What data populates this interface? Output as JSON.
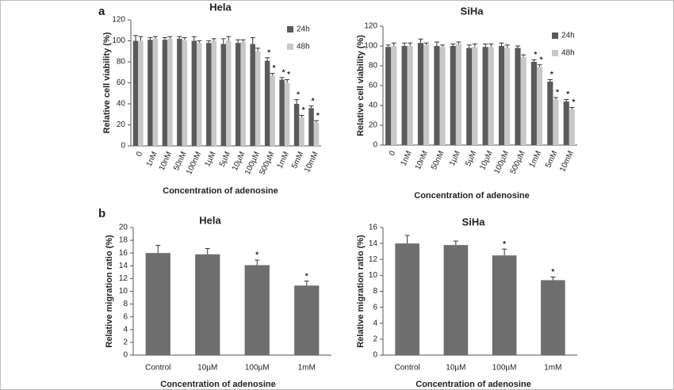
{
  "panel_labels": [
    "a",
    "b"
  ],
  "chart_data": [
    {
      "type": "bar",
      "title": "Hela",
      "ylabel": "Relative cell viability (%)",
      "xlabel": "Concentration of adenosine",
      "categories": [
        "0",
        "1nM",
        "10nM",
        "50nM",
        "100nM",
        "1µM",
        "5µM",
        "10µM",
        "100µM",
        "500µM",
        "1mM",
        "5mM",
        "10mM"
      ],
      "series": [
        {
          "name": "24h",
          "color": "#5a5a5a",
          "values": [
            100,
            101,
            101,
            102,
            100,
            98,
            97,
            98,
            97,
            81,
            63,
            40,
            36
          ],
          "errors": [
            5,
            2,
            2,
            2,
            4,
            2,
            5,
            3,
            6,
            3,
            2,
            4,
            2
          ],
          "annotations": [
            null,
            null,
            null,
            null,
            null,
            null,
            null,
            null,
            null,
            "*",
            "*",
            "*",
            "*"
          ]
        },
        {
          "name": "48h",
          "color": "#c8c8c8",
          "values": [
            100,
            102,
            102,
            101,
            98,
            100,
            100,
            99,
            90,
            67,
            60,
            27,
            22
          ],
          "errors": [
            4,
            2,
            2,
            2,
            2,
            2,
            4,
            2,
            3,
            2,
            3,
            2,
            2
          ],
          "annotations": [
            null,
            null,
            null,
            null,
            null,
            null,
            null,
            null,
            null,
            "*",
            "*",
            "*",
            "*"
          ]
        }
      ],
      "ylim": [
        0,
        120
      ],
      "yticks": [
        0,
        20,
        40,
        60,
        80,
        100,
        120
      ],
      "legend": "top-right"
    },
    {
      "type": "bar",
      "title": "SiHa",
      "ylabel": "Relative cell viability (%)",
      "xlabel": "Concentration of adenosine",
      "categories": [
        "0",
        "1nM",
        "10nM",
        "50nM",
        "1µM",
        "5µM",
        "10µM",
        "100µM",
        "500µM",
        "1mM",
        "5mM",
        "10mM"
      ],
      "series": [
        {
          "name": "24h",
          "color": "#5a5a5a",
          "values": [
            99,
            100,
            103,
            100,
            100,
            98,
            99,
            100,
            98,
            84,
            64,
            44
          ],
          "errors": [
            2,
            3,
            4,
            4,
            2,
            3,
            3,
            3,
            2,
            2,
            2,
            2
          ],
          "annotations": [
            null,
            null,
            null,
            null,
            null,
            null,
            null,
            null,
            null,
            "*",
            "*",
            "*"
          ]
        },
        {
          "name": "48h",
          "color": "#c8c8c8",
          "values": [
            100,
            100,
            101,
            99,
            102,
            99,
            99,
            98,
            89,
            79,
            46,
            36
          ],
          "errors": [
            3,
            3,
            2,
            2,
            2,
            3,
            3,
            3,
            2,
            2,
            2,
            2
          ],
          "annotations": [
            null,
            null,
            null,
            null,
            null,
            null,
            null,
            null,
            null,
            "*",
            "*",
            "*"
          ]
        }
      ],
      "ylim": [
        0,
        120
      ],
      "yticks": [
        0,
        20,
        40,
        60,
        80,
        100,
        120
      ],
      "legend": "top-right"
    },
    {
      "type": "bar",
      "title": "Hela",
      "ylabel": "Relative migration ratio (%)",
      "xlabel": "Concentration of adenosine",
      "categories": [
        "Control",
        "10µM",
        "100µM",
        "1mM"
      ],
      "values": [
        16,
        15.8,
        14.1,
        10.9
      ],
      "errors": [
        1.2,
        0.9,
        0.8,
        0.7
      ],
      "annotations": [
        null,
        null,
        "*",
        "*"
      ],
      "color": "#6e6e6e",
      "ylim": [
        0,
        20
      ],
      "yticks": [
        0,
        2,
        4,
        6,
        8,
        10,
        12,
        14,
        16,
        18,
        20
      ]
    },
    {
      "type": "bar",
      "title": "SiHa",
      "ylabel": "Relative migration ratio (%)",
      "xlabel": "Concentration of adenosine",
      "categories": [
        "Control",
        "10µM",
        "100µM",
        "1mM"
      ],
      "values": [
        14,
        13.8,
        12.5,
        9.4
      ],
      "errors": [
        1,
        0.5,
        0.8,
        0.4
      ],
      "annotations": [
        null,
        null,
        "*",
        "*"
      ],
      "color": "#6e6e6e",
      "ylim": [
        0,
        16
      ],
      "yticks": [
        0,
        2,
        4,
        6,
        8,
        10,
        12,
        14,
        16
      ]
    }
  ]
}
